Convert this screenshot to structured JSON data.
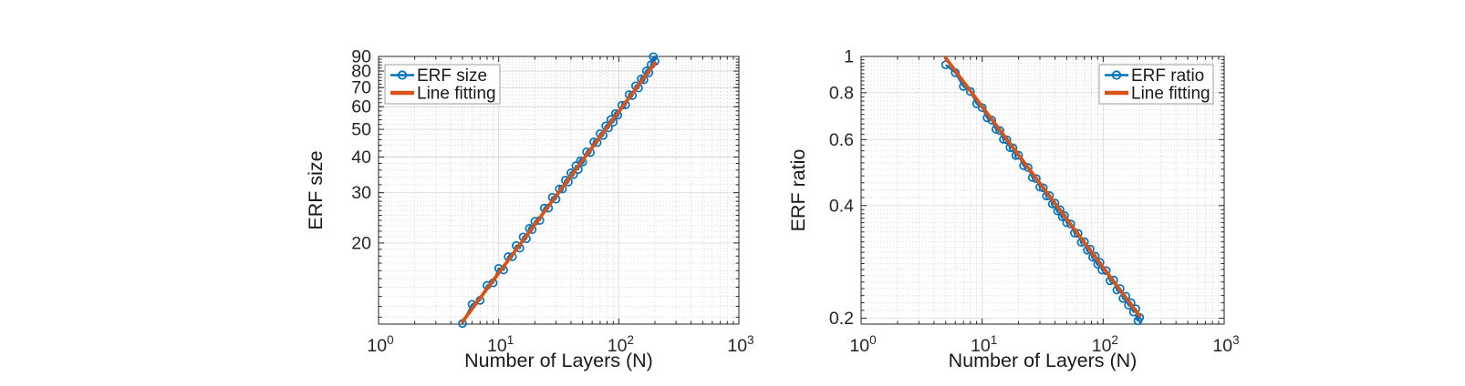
{
  "colors": {
    "series_blue": "#0072BD",
    "fit_orange": "#D95319",
    "tick_text": "#262626",
    "label_text": "#1a1a1a",
    "spine": "#262626",
    "grid_major": "rgba(38,38,38,0.15)",
    "grid_minor": "rgba(38,38,38,0.18)",
    "legend_border": "#9e9e9e",
    "legend_bg": "#ffffff",
    "background": "#ffffff"
  },
  "chart_data": [
    {
      "type": "scatter",
      "title": "",
      "xlabel": "Number of Layers (N)",
      "ylabel": "ERF size",
      "xscale": "log",
      "yscale": "log",
      "xlim": [
        1,
        1000
      ],
      "ylim": [
        10.4,
        90
      ],
      "xticks": [
        1,
        10,
        100,
        1000
      ],
      "xtick_labels": [
        "10^0",
        "10^1",
        "10^2",
        "10^3"
      ],
      "yticks": [
        20,
        30,
        40,
        50,
        60,
        70,
        80,
        90
      ],
      "ytick_labels": [
        "20",
        "30",
        "40",
        "50",
        "60",
        "70",
        "80",
        "90"
      ],
      "grid": true,
      "minor_grid": true,
      "legend": {
        "position": "top-left",
        "entries": [
          {
            "label": "ERF size",
            "style": "line-marker",
            "color": "#0072BD"
          },
          {
            "label": "Line fitting",
            "style": "line",
            "color": "#D95319"
          }
        ]
      },
      "series": [
        {
          "name": "ERF size",
          "x": [
            5,
            6,
            7,
            8,
            9,
            10,
            11,
            12,
            13,
            14,
            15,
            16,
            17,
            18,
            19,
            20,
            22,
            24,
            26,
            28,
            30,
            32,
            34,
            36,
            38,
            40,
            42,
            44,
            46,
            48,
            50,
            54,
            58,
            62,
            66,
            70,
            74,
            78,
            82,
            86,
            90,
            94,
            98,
            106,
            114,
            122,
            130,
            138,
            146,
            154,
            162,
            170,
            178,
            186,
            194,
            200
          ],
          "y": [
            10.45,
            12.2,
            12.6,
            14.2,
            14.5,
            16.3,
            16.1,
            17.9,
            17.9,
            19.6,
            19.2,
            21.0,
            20.7,
            22.5,
            22.3,
            23.8,
            24.0,
            26.5,
            26.5,
            28.9,
            28.5,
            30.9,
            30.9,
            33.2,
            32.7,
            35.2,
            34.7,
            37.3,
            36.2,
            38.8,
            38.4,
            41.7,
            41.5,
            45.2,
            44.9,
            48.3,
            47.6,
            51.4,
            50.6,
            54.1,
            53.0,
            56.8,
            56.1,
            60.7,
            60.9,
            66.1,
            65.7,
            71.0,
            69.8,
            75.1,
            74.6,
            80.0,
            78.9,
            84.2,
            89.8,
            86.5
          ]
        },
        {
          "name": "Line fitting",
          "x": [
            5,
            200
          ],
          "y": [
            10.6,
            85.3
          ]
        }
      ]
    },
    {
      "type": "scatter",
      "title": "",
      "xlabel": "Number of Layers (N)",
      "ylabel": "ERF ratio",
      "xscale": "log",
      "yscale": "log",
      "xlim": [
        1,
        1000
      ],
      "ylim": [
        0.193,
        1
      ],
      "xticks": [
        1,
        10,
        100,
        1000
      ],
      "xtick_labels": [
        "10^0",
        "10^1",
        "10^2",
        "10^3"
      ],
      "yticks": [
        0.2,
        0.4,
        0.6,
        0.8,
        1
      ],
      "ytick_labels": [
        "0.2",
        "0.4",
        "0.6",
        "0.8",
        "1"
      ],
      "grid": true,
      "minor_grid": true,
      "legend": {
        "position": "top-right",
        "entries": [
          {
            "label": "ERF ratio",
            "style": "line-marker",
            "color": "#0072BD"
          },
          {
            "label": "Line fitting",
            "style": "line",
            "color": "#D95319"
          }
        ]
      },
      "series": [
        {
          "name": "ERF ratio",
          "x": [
            5,
            6,
            7,
            8,
            9,
            10,
            11,
            12,
            13,
            14,
            15,
            16,
            17,
            18,
            19,
            20,
            22,
            24,
            26,
            28,
            30,
            32,
            34,
            36,
            38,
            40,
            42,
            44,
            46,
            48,
            50,
            54,
            58,
            62,
            66,
            70,
            74,
            78,
            82,
            86,
            90,
            94,
            98,
            106,
            114,
            122,
            130,
            138,
            146,
            154,
            162,
            170,
            178,
            186,
            194,
            200
          ],
          "y": [
            0.95,
            0.905,
            0.832,
            0.806,
            0.748,
            0.73,
            0.686,
            0.676,
            0.639,
            0.634,
            0.601,
            0.599,
            0.571,
            0.57,
            0.544,
            0.545,
            0.511,
            0.505,
            0.475,
            0.472,
            0.448,
            0.446,
            0.424,
            0.425,
            0.404,
            0.406,
            0.387,
            0.39,
            0.373,
            0.376,
            0.36,
            0.357,
            0.338,
            0.337,
            0.319,
            0.32,
            0.304,
            0.306,
            0.291,
            0.293,
            0.279,
            0.282,
            0.269,
            0.268,
            0.252,
            0.253,
            0.238,
            0.24,
            0.226,
            0.229,
            0.217,
            0.22,
            0.208,
            0.212,
            0.197,
            0.201
          ]
        },
        {
          "name": "Line fitting",
          "x": [
            5,
            200
          ],
          "y": [
            0.99,
            0.203
          ]
        }
      ]
    }
  ]
}
